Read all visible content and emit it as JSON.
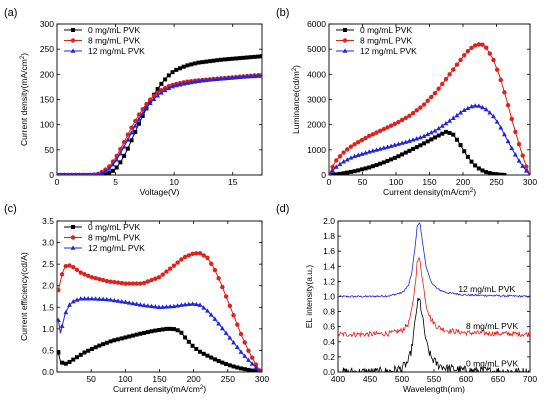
{
  "colors": {
    "black": "#000000",
    "red": "#e0201b",
    "blue": "#1f24e0"
  },
  "chart_data": [
    {
      "panel": "(a)",
      "type": "line",
      "xlabel": "Voltage(V)",
      "ylabel": "Current density(mA/cm",
      "ylabel_sup": "2",
      "ylabel_end": ")",
      "xlim": [
        0,
        17.5
      ],
      "ylim": [
        0,
        300
      ],
      "xticks": [
        0,
        5,
        10,
        15
      ],
      "yticks": [
        0,
        50,
        100,
        150,
        200,
        250,
        300
      ],
      "legend": "top-left",
      "series": [
        {
          "name": "0 mg/mL PVK",
          "color": "#000000",
          "marker": "square",
          "x": [
            0,
            3,
            4,
            4.5,
            5,
            5.5,
            6,
            6.5,
            7,
            7.5,
            8,
            8.5,
            9,
            9.5,
            10,
            11,
            12,
            13,
            14,
            15,
            16,
            17.5
          ],
          "y": [
            0,
            0,
            1,
            4,
            12,
            28,
            50,
            76,
            102,
            126,
            149,
            168,
            184,
            197,
            207,
            217,
            223,
            226,
            229,
            231,
            233,
            236
          ]
        },
        {
          "name": "8 mg/mL PVK",
          "color": "#e0201b",
          "marker": "circle",
          "x": [
            0,
            3,
            3.5,
            4,
            4.5,
            5,
            5.5,
            6,
            6.5,
            7,
            7.5,
            8,
            8.5,
            9,
            9.5,
            10,
            11,
            12,
            13,
            14,
            15,
            16,
            17.5
          ],
          "y": [
            0,
            0,
            2,
            8,
            18,
            34,
            55,
            78,
            100,
            120,
            137,
            151,
            162,
            170,
            176,
            180,
            185,
            188,
            190,
            192,
            194,
            196,
            199
          ]
        },
        {
          "name": "12 mg/mL PVK",
          "color": "#1f24e0",
          "marker": "triangle",
          "x": [
            0,
            3,
            3.5,
            4,
            4.5,
            5,
            5.5,
            6,
            6.5,
            7,
            7.5,
            8,
            8.5,
            9,
            9.5,
            10,
            11,
            12,
            13,
            14,
            15,
            16,
            17.5
          ],
          "y": [
            0,
            0,
            1,
            5,
            13,
            27,
            46,
            68,
            90,
            111,
            129,
            144,
            156,
            165,
            172,
            177,
            182,
            186,
            189,
            191,
            193,
            195,
            197
          ]
        }
      ]
    },
    {
      "panel": "(b)",
      "type": "line",
      "xlabel": "Current density(mA/cm",
      "xlabel_sup": "2",
      "xlabel_end": ")",
      "ylabel": "Luminance(cd/m",
      "ylabel_sup": "2",
      "ylabel_end": ")",
      "xlim": [
        0,
        300
      ],
      "ylim": [
        0,
        6000
      ],
      "xticks": [
        0,
        50,
        100,
        150,
        200,
        250,
        300
      ],
      "yticks": [
        0,
        1000,
        2000,
        3000,
        4000,
        5000,
        6000
      ],
      "legend": "top-left",
      "series": [
        {
          "name": "0 mg/mL PVK",
          "color": "#000000",
          "marker": "square",
          "x": [
            0,
            10,
            20,
            40,
            60,
            80,
            100,
            120,
            140,
            160,
            175,
            185,
            195,
            205,
            215,
            225,
            235,
            245,
            255,
            265
          ],
          "y": [
            0,
            20,
            60,
            160,
            300,
            480,
            700,
            960,
            1230,
            1520,
            1720,
            1620,
            1250,
            800,
            450,
            230,
            110,
            45,
            15,
            0
          ]
        },
        {
          "name": "8 mg/mL PVK",
          "color": "#e0201b",
          "marker": "circle",
          "x": [
            0,
            5,
            10,
            20,
            30,
            40,
            60,
            80,
            100,
            120,
            140,
            160,
            180,
            200,
            210,
            220,
            228,
            235,
            245,
            255,
            265,
            275,
            285,
            295,
            300
          ],
          "y": [
            0,
            300,
            550,
            850,
            1080,
            1250,
            1550,
            1800,
            2050,
            2350,
            2750,
            3300,
            4000,
            4700,
            5000,
            5180,
            5200,
            5050,
            4600,
            3900,
            3000,
            2000,
            1100,
            300,
            0
          ]
        },
        {
          "name": "12 mg/mL PVK",
          "color": "#1f24e0",
          "marker": "triangle",
          "x": [
            0,
            5,
            10,
            20,
            30,
            40,
            60,
            80,
            100,
            120,
            140,
            160,
            180,
            200,
            215,
            225,
            235,
            245,
            255,
            265,
            275,
            285,
            295,
            300
          ],
          "y": [
            0,
            150,
            300,
            500,
            650,
            760,
            920,
            1060,
            1200,
            1350,
            1520,
            1780,
            2150,
            2550,
            2750,
            2740,
            2600,
            2350,
            1950,
            1450,
            950,
            500,
            150,
            0
          ]
        }
      ]
    },
    {
      "panel": "(c)",
      "type": "line",
      "xlabel": "Current density(mA/cm",
      "xlabel_sup": "2",
      "xlabel_end": ")",
      "ylabel": "Current efficiency(cd/A)",
      "xlim": [
        0,
        300
      ],
      "ylim": [
        0,
        3.5
      ],
      "xticks": [
        50,
        100,
        150,
        200,
        250,
        300
      ],
      "yticks": [
        0.0,
        0.5,
        1.0,
        1.5,
        2.0,
        2.5,
        3.0,
        3.5
      ],
      "legend": "top-left",
      "series": [
        {
          "name": "0 mg/mL PVK",
          "color": "#000000",
          "marker": "square",
          "x": [
            2,
            5,
            10,
            15,
            20,
            30,
            40,
            60,
            80,
            100,
            120,
            140,
            160,
            170,
            180,
            190,
            200,
            210,
            220,
            230,
            240,
            250,
            260,
            270,
            280,
            290,
            298
          ],
          "y": [
            0.45,
            0.25,
            0.18,
            0.2,
            0.25,
            0.35,
            0.45,
            0.6,
            0.72,
            0.8,
            0.88,
            0.95,
            1.0,
            1.0,
            0.95,
            0.75,
            0.58,
            0.46,
            0.38,
            0.3,
            0.23,
            0.17,
            0.12,
            0.08,
            0.05,
            0.02,
            0.0
          ]
        },
        {
          "name": "8 mg/mL PVK",
          "color": "#e0201b",
          "marker": "circle",
          "x": [
            2,
            5,
            8,
            12,
            18,
            25,
            35,
            50,
            75,
            100,
            125,
            150,
            170,
            185,
            200,
            210,
            220,
            230,
            240,
            250,
            260,
            270,
            280,
            290,
            298
          ],
          "y": [
            1.9,
            2.1,
            2.3,
            2.45,
            2.47,
            2.42,
            2.3,
            2.2,
            2.1,
            2.05,
            2.05,
            2.2,
            2.45,
            2.65,
            2.75,
            2.75,
            2.65,
            2.4,
            2.05,
            1.65,
            1.25,
            0.85,
            0.5,
            0.2,
            0.0
          ]
        },
        {
          "name": "12 mg/mL PVK",
          "color": "#1f24e0",
          "marker": "triangle",
          "x": [
            2,
            5,
            8,
            12,
            18,
            25,
            35,
            50,
            75,
            100,
            125,
            150,
            170,
            185,
            200,
            210,
            220,
            230,
            240,
            250,
            260,
            270,
            280,
            290,
            298
          ],
          "y": [
            1.2,
            0.9,
            1.1,
            1.35,
            1.55,
            1.65,
            1.7,
            1.7,
            1.68,
            1.62,
            1.55,
            1.5,
            1.52,
            1.56,
            1.58,
            1.55,
            1.42,
            1.25,
            1.05,
            0.85,
            0.65,
            0.45,
            0.28,
            0.12,
            0.0
          ]
        }
      ]
    },
    {
      "panel": "(d)",
      "type": "line",
      "xlabel": "Wavelength(nm)",
      "ylabel": "EL intensity(a.u.)",
      "xlim": [
        400,
        700
      ],
      "ylim": [
        0,
        2.0
      ],
      "xticks": [
        400,
        450,
        500,
        550,
        600,
        650,
        700
      ],
      "yticks": [
        0.0,
        0.2,
        0.4,
        0.6,
        0.8,
        1.0,
        1.2,
        1.4,
        1.6,
        1.8,
        2.0
      ],
      "annotations": [
        {
          "text": "12 mg/mL PVK",
          "x": 588,
          "y": 1.06
        },
        {
          "text": "8 mg/mL PVK",
          "x": 600,
          "y": 0.57
        },
        {
          "text": "0 mg/mL PVK",
          "x": 600,
          "y": 0.07
        }
      ],
      "series": [
        {
          "name": "12 mg/mL PVK",
          "color": "#1f24e0",
          "offset": 1.0,
          "noise": 0.012,
          "x": [
            400,
            450,
            480,
            500,
            510,
            515,
            520,
            524,
            528,
            532,
            538,
            545,
            555,
            570,
            600,
            650,
            700
          ],
          "y": [
            0,
            0,
            0.01,
            0.05,
            0.14,
            0.3,
            0.62,
            0.95,
            0.98,
            0.72,
            0.38,
            0.2,
            0.1,
            0.05,
            0.02,
            0.01,
            0.0
          ]
        },
        {
          "name": "8 mg/mL PVK",
          "color": "#e0201b",
          "offset": 0.5,
          "noise": 0.035,
          "x": [
            400,
            450,
            480,
            500,
            510,
            515,
            520,
            524,
            528,
            532,
            538,
            545,
            555,
            570,
            600,
            650,
            700
          ],
          "y": [
            0,
            0,
            0.01,
            0.05,
            0.14,
            0.3,
            0.62,
            0.97,
            1.0,
            0.72,
            0.38,
            0.2,
            0.1,
            0.05,
            0.02,
            0.01,
            0.0
          ]
        },
        {
          "name": "0 mg/mL PVK",
          "color": "#000000",
          "offset": 0.0,
          "noise": 0.06,
          "x": [
            400,
            450,
            480,
            500,
            510,
            515,
            520,
            524,
            528,
            532,
            538,
            545,
            555,
            570,
            600,
            650,
            700
          ],
          "y": [
            0,
            0,
            0.01,
            0.05,
            0.14,
            0.3,
            0.62,
            0.92,
            0.95,
            0.72,
            0.38,
            0.2,
            0.1,
            0.05,
            0.02,
            0.01,
            0.0
          ]
        }
      ]
    }
  ]
}
